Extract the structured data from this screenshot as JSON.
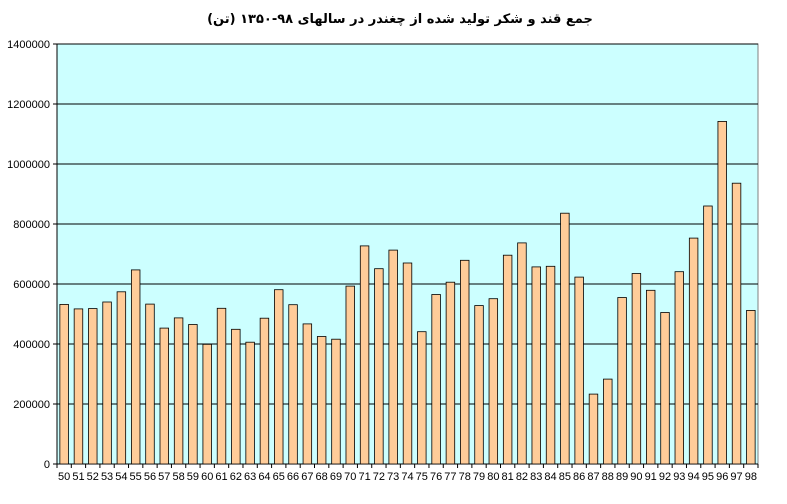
{
  "chart_data": {
    "type": "bar",
    "title": "جمع قند و شکر تولید شده از چغندر در سالهای ۹۸-۱۳۵۰ (تن)",
    "xlabel": "",
    "ylabel": "",
    "ylim": [
      0,
      1400000
    ],
    "yticks": [
      0,
      200000,
      400000,
      600000,
      800000,
      1000000,
      1200000,
      1400000
    ],
    "categories": [
      "50",
      "51",
      "52",
      "53",
      "54",
      "55",
      "56",
      "57",
      "58",
      "59",
      "60",
      "61",
      "62",
      "63",
      "64",
      "65",
      "66",
      "67",
      "68",
      "69",
      "70",
      "71",
      "72",
      "73",
      "74",
      "75",
      "76",
      "77",
      "78",
      "79",
      "80",
      "81",
      "82",
      "83",
      "84",
      "85",
      "86",
      "87",
      "88",
      "89",
      "90",
      "91",
      "92",
      "93",
      "94",
      "95",
      "96",
      "97",
      "98"
    ],
    "values": [
      532000,
      517000,
      518000,
      540000,
      574000,
      647000,
      533000,
      453000,
      487000,
      465000,
      399000,
      519000,
      449000,
      406000,
      486000,
      581000,
      531000,
      467000,
      425000,
      416000,
      593000,
      727000,
      651000,
      713000,
      670000,
      441000,
      565000,
      606000,
      679000,
      528000,
      551000,
      696000,
      737000,
      657000,
      659000,
      836000,
      623000,
      233000,
      283000,
      555000,
      635000,
      579000,
      505000,
      641000,
      753000,
      860000,
      1142000,
      936000,
      512000
    ],
    "grid": true,
    "colors": {
      "plot_background": "#ccffff",
      "bar_fill": "#ffcc99",
      "bar_stroke": "#000000",
      "gridline": "#000000"
    }
  }
}
